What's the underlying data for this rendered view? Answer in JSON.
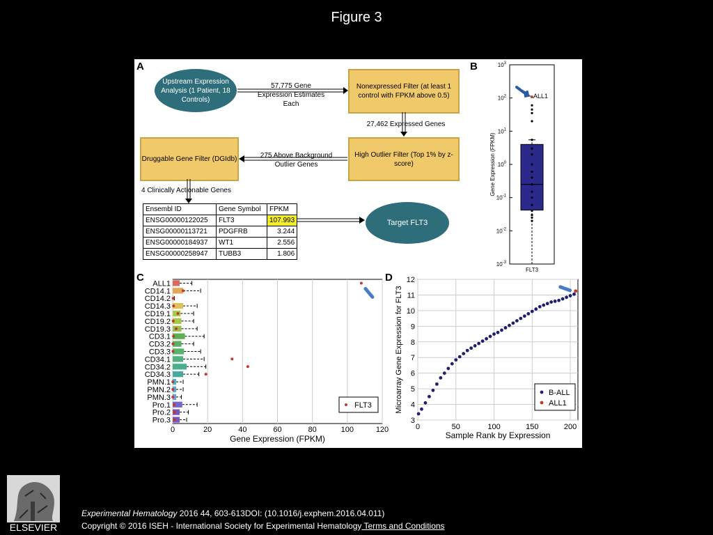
{
  "page_title": "Figure 3",
  "panel_labels": [
    "A",
    "B",
    "C",
    "D"
  ],
  "panel_a": {
    "upstream": "Upstream Expression Analysis (1 Patient, 18 Controls)",
    "arrow1": "57,775 Gene Expression Estimates Each",
    "nonexpressed": "Nonexpressed Filter (at least 1 control with FPKM above 0.5)",
    "arrow2": "27,462 Expressed Genes",
    "high_outlier": "High Outlier Filter (Top 1% by z-score)",
    "arrow3": "275 Above Background Outlier Genes",
    "druggable": "Druggable Gene Filter (DGIdb)",
    "arrow4": "4 Clinically Actionable Genes",
    "target": "Target FLT3",
    "table_headers": [
      "Ensembl ID",
      "Gene Symbol",
      "FPKM"
    ],
    "table_rows": [
      [
        "ENSG00000122025",
        "FLT3",
        "107.993"
      ],
      [
        "ENSG00000113721",
        "PDGFRB",
        "3.244"
      ],
      [
        "ENSG00000184937",
        "WT1",
        "2.556"
      ],
      [
        "ENSG00000258947",
        "TUBB3",
        "1.806"
      ]
    ]
  },
  "chart_data": [
    {
      "panel": "B",
      "type": "box",
      "ylabel": "Gene Expression (FPKM)",
      "xlabel": "FLT3",
      "yscale": "log",
      "ylim": [
        0.001,
        1000
      ],
      "ytick_bases": [
        "10",
        "10",
        "10",
        "10",
        "10",
        "10",
        "10"
      ],
      "ytick_exps": [
        "-3",
        "-2",
        "-1",
        "0",
        "1",
        "2",
        "3"
      ],
      "ytick_values": [
        0.001,
        0.01,
        0.1,
        1,
        10,
        100,
        1000
      ],
      "box": {
        "q1": 0.042,
        "median": 0.25,
        "q3": 4.0,
        "whisker_low": 0.001,
        "whisker_high": 5.5
      },
      "control_points": [
        0.02,
        0.025,
        0.03,
        0.04,
        0.06,
        0.1,
        0.15,
        0.25,
        0.4,
        0.6,
        1.0,
        2.0,
        3.0,
        5.5,
        20,
        35,
        45,
        60
      ],
      "highlight": {
        "label": "ALL1",
        "value": 108
      }
    },
    {
      "panel": "C",
      "type": "box",
      "orientation": "horizontal",
      "xlabel": "Gene Expression (FPKM)",
      "xlim": [
        0,
        120
      ],
      "xticks": [
        "0",
        "20",
        "40",
        "60",
        "80",
        "100",
        "120"
      ],
      "xtick_values": [
        0,
        20,
        40,
        60,
        80,
        100,
        120
      ],
      "legend": "FLT3",
      "categories": [
        "ALL1",
        "CD14.1",
        "CD14.2",
        "CD14.3",
        "CD19.1",
        "CD19.2",
        "CD19.3",
        "CD3.1",
        "CD3.2",
        "CD3.3",
        "CD34.1",
        "CD34.2",
        "CD34.3",
        "PMN.1",
        "PMN.2",
        "PMN.3",
        "Pro.1",
        "Pro.2",
        "Pro.3"
      ],
      "colors": [
        "#d9695e",
        "#e0a85a",
        "#dcc45a",
        "#e0c05a",
        "#a8c84a",
        "#a8c84a",
        "#98c050",
        "#5cb050",
        "#58b060",
        "#58b46c",
        "#52b07c",
        "#4aae8c",
        "#48aa9c",
        "#4aaec8",
        "#58a8d4",
        "#6aa0d8",
        "#7468c8",
        "#7458c0",
        "#7858c0"
      ],
      "q1": [
        0,
        0,
        0,
        0,
        0,
        0,
        0,
        0,
        0,
        0,
        0,
        0,
        0,
        0,
        0,
        0,
        0,
        0,
        0
      ],
      "q3": [
        4,
        6,
        0.5,
        6,
        4.5,
        5,
        5,
        7,
        5,
        6.5,
        6,
        8,
        6,
        2,
        2,
        2,
        5.5,
        4,
        4
      ],
      "whisker_high": [
        11,
        16,
        1,
        14,
        12,
        12,
        14,
        18,
        12,
        16,
        18,
        19,
        15,
        6,
        6,
        5,
        14,
        9,
        8
      ],
      "flt3": [
        108,
        6,
        0.3,
        0.5,
        3,
        0.3,
        2,
        0.5,
        0.2,
        0.2,
        34,
        43,
        19,
        0.1,
        0.1,
        0.1,
        0.8,
        1,
        1
      ]
    },
    {
      "panel": "D",
      "type": "scatter",
      "xlabel": "Sample Rank by Expression",
      "ylabel": "Microarray Gene Expression for FLT3",
      "xlim": [
        0,
        210
      ],
      "ylim": [
        3,
        12
      ],
      "xticks": [
        "0",
        "50",
        "100",
        "150",
        "200"
      ],
      "xtick_values": [
        0,
        50,
        100,
        150,
        200
      ],
      "yticks": [
        "3",
        "4",
        "5",
        "6",
        "7",
        "8",
        "9",
        "10",
        "11",
        "12"
      ],
      "ytick_values": [
        3,
        4,
        5,
        6,
        7,
        8,
        9,
        10,
        11,
        12
      ],
      "series": [
        {
          "name": "B-ALL",
          "color": "#1f1f6e",
          "x": [
            1,
            5,
            10,
            15,
            20,
            25,
            30,
            35,
            40,
            45,
            50,
            55,
            60,
            65,
            70,
            75,
            80,
            85,
            90,
            95,
            100,
            105,
            110,
            115,
            120,
            125,
            130,
            135,
            140,
            145,
            150,
            155,
            160,
            165,
            170,
            175,
            180,
            185,
            190,
            195,
            200,
            205
          ],
          "y": [
            3.4,
            3.7,
            4.1,
            4.5,
            4.9,
            5.3,
            5.7,
            6.0,
            6.3,
            6.6,
            6.85,
            7.05,
            7.25,
            7.45,
            7.6,
            7.75,
            7.9,
            8.05,
            8.2,
            8.35,
            8.5,
            8.6,
            8.75,
            8.9,
            9.05,
            9.2,
            9.35,
            9.5,
            9.65,
            9.8,
            9.95,
            10.1,
            10.25,
            10.35,
            10.45,
            10.55,
            10.6,
            10.65,
            10.75,
            10.85,
            10.95,
            11.05
          ]
        },
        {
          "name": "ALL1",
          "color": "#c0392b",
          "x": [
            207
          ],
          "y": [
            11.25
          ]
        }
      ]
    }
  ],
  "footer": {
    "journal": "Experimental Hematology",
    "citation": " 2016 44, 603-613DOI: (10.1016/j.exphem.2016.04.011)",
    "copyright": "Copyright © 2016 ISEH - International Society for Experimental Hematology",
    "terms_link": " Terms and Conditions",
    "publisher": "ELSEVIER"
  }
}
